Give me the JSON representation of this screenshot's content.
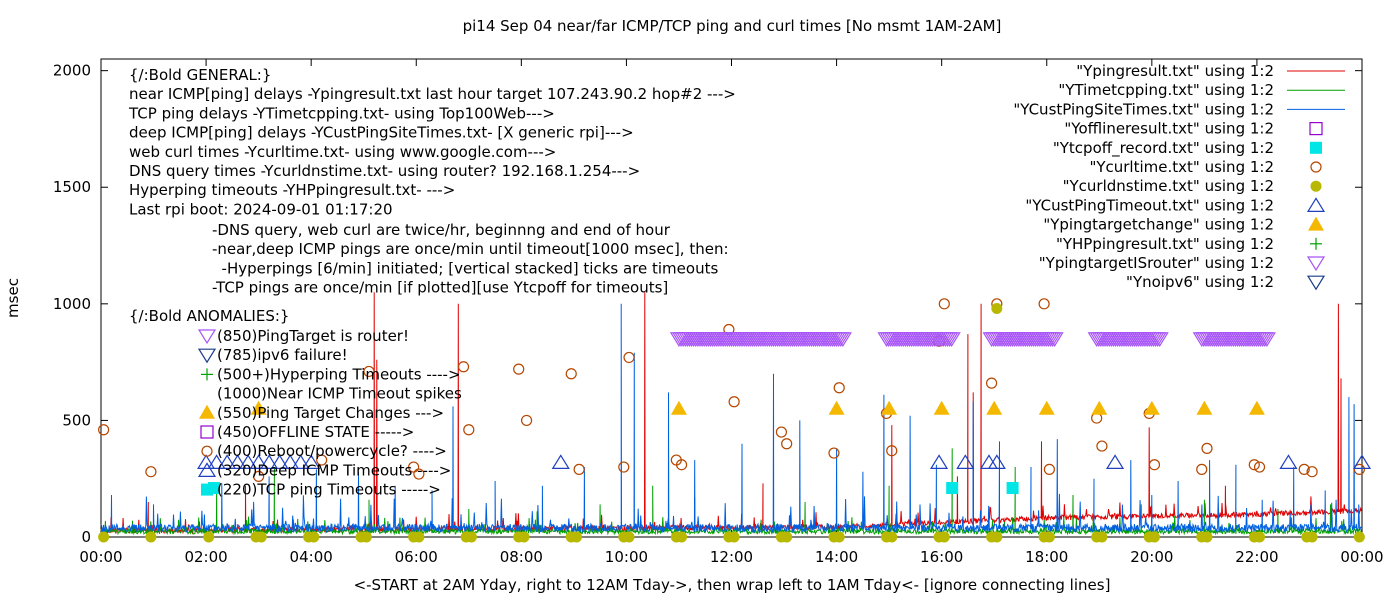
{
  "chart_data": {
    "type": "line",
    "title": "pi14 Sep 04  near/far ICMP/TCP ping and curl times [No msmt 1AM-2AM]",
    "xlabel": "<-START at 2AM Yday, right to 12AM Tday->, then wrap left to 1AM Tday<- [ignore connecting lines]",
    "ylabel": "msec",
    "xlim": [
      0,
      24
    ],
    "ylim": [
      0,
      2050
    ],
    "x_ticks": [
      {
        "value": 0,
        "label": "00:00"
      },
      {
        "value": 2,
        "label": "02:00"
      },
      {
        "value": 4,
        "label": "04:00"
      },
      {
        "value": 6,
        "label": "06:00"
      },
      {
        "value": 8,
        "label": "08:00"
      },
      {
        "value": 10,
        "label": "10:00"
      },
      {
        "value": 12,
        "label": "12:00"
      },
      {
        "value": 14,
        "label": "14:00"
      },
      {
        "value": 16,
        "label": "16:00"
      },
      {
        "value": 18,
        "label": "18:00"
      },
      {
        "value": 20,
        "label": "20:00"
      },
      {
        "value": 22,
        "label": "22:00"
      },
      {
        "value": 24,
        "label": "00:00"
      }
    ],
    "y_ticks": [
      {
        "value": 0,
        "label": "0"
      },
      {
        "value": 500,
        "label": "500"
      },
      {
        "value": 1000,
        "label": "1000"
      },
      {
        "value": 1500,
        "label": "1500"
      },
      {
        "value": 2000,
        "label": "2000"
      }
    ],
    "grid": false,
    "legend_position": "top-right",
    "annotations_general": [
      "{/:Bold GENERAL:}",
      "near ICMP[ping] delays -Ypingresult.txt last hour target 107.243.90.2 hop#2 --->",
      "TCP ping delays -YTimetcpping.txt- using Top100Web--->",
      "deep ICMP[ping] delays -YCustPingSiteTimes.txt- [X generic rpi]--->",
      "web curl times -Ycurltime.txt- using www.google.com--->",
      "DNS query times -Ycurldnstime.txt- using router? 192.168.1.254--->",
      "Hyperping timeouts -YHPpingresult.txt- --->",
      "Last rpi boot: 2024-09-01 01:17:20"
    ],
    "annotations_notes": [
      "-DNS query, web curl are twice/hr, beginnng and end of hour",
      "-near,deep ICMP pings are once/min until timeout[1000 msec], then:",
      "  -Hyperpings [6/min] initiated; [vertical stacked] ticks are timeouts",
      "-TCP pings are once/min [if plotted][use Ytcpoff for timeouts]"
    ],
    "anomalies_title": "{/:Bold ANOMALIES:}",
    "anomalies": [
      "(850)PingTarget is router!",
      "(785)ipv6 failure!",
      "(500+)Hyperping Timeouts ---->",
      "(1000)Near ICMP Timeout spikes",
      "(550)Ping Target Changes --->",
      "(450)OFFLINE STATE ----->",
      "(400)Reboot/powercycle? ---->",
      "(320)Deep ICMP Timeouts ---->",
      "(220)TCP ping Timeouts ----->"
    ],
    "series": [
      {
        "name": "\"Ypingresult.txt\" using 1:2",
        "style": "line",
        "color": "#e00000",
        "baseline": [
          [
            0,
            25
          ],
          [
            14,
            40
          ],
          [
            16,
            60
          ],
          [
            18,
            80
          ],
          [
            22,
            95
          ],
          [
            23.9,
            110
          ]
        ],
        "spikes": [
          [
            0.9,
            150
          ],
          [
            2.75,
            220
          ],
          [
            5.2,
            1050
          ],
          [
            5.25,
            760
          ],
          [
            6.8,
            1000
          ],
          [
            10.35,
            1050
          ],
          [
            12.6,
            230
          ],
          [
            15.05,
            480
          ],
          [
            16.3,
            260
          ],
          [
            16.5,
            870
          ],
          [
            16.6,
            620
          ],
          [
            16.75,
            1000
          ],
          [
            17.9,
            410
          ],
          [
            19.95,
            470
          ],
          [
            21.4,
            220
          ],
          [
            23.55,
            1000
          ],
          [
            23.6,
            680
          ]
        ]
      },
      {
        "name": "\"YTimetcpping.txt\" using 1:2",
        "style": "line",
        "color": "#00a000",
        "baseline": [
          [
            0,
            22
          ],
          [
            24,
            22
          ]
        ],
        "spikes": [
          [
            0.6,
            70
          ],
          [
            2.2,
            200
          ],
          [
            3.3,
            300
          ],
          [
            5.1,
            160
          ],
          [
            7.0,
            120
          ],
          [
            8.3,
            110
          ],
          [
            9.5,
            140
          ],
          [
            10.5,
            220
          ],
          [
            11.3,
            170
          ],
          [
            13.4,
            150
          ],
          [
            15.0,
            220
          ],
          [
            16.2,
            380
          ],
          [
            17.4,
            300
          ],
          [
            18.5,
            180
          ],
          [
            19.8,
            140
          ],
          [
            21.0,
            160
          ],
          [
            22.4,
            120
          ],
          [
            23.4,
            140
          ]
        ]
      },
      {
        "name": "\"YCustPingSiteTimes.txt\" using 1:2",
        "style": "line",
        "color": "#0060e0",
        "baseline": [
          [
            0,
            35
          ],
          [
            24,
            35
          ]
        ],
        "spikes": [
          [
            0.2,
            180
          ],
          [
            1.0,
            140
          ],
          [
            2.3,
            230
          ],
          [
            3.2,
            260
          ],
          [
            4.1,
            290
          ],
          [
            4.9,
            280
          ],
          [
            5.6,
            220
          ],
          [
            6.3,
            200
          ],
          [
            6.7,
            560
          ],
          [
            7.5,
            240
          ],
          [
            8.4,
            220
          ],
          [
            9.2,
            300
          ],
          [
            9.9,
            1000
          ],
          [
            10.15,
            790
          ],
          [
            10.8,
            620
          ],
          [
            11.3,
            330
          ],
          [
            12.2,
            400
          ],
          [
            12.8,
            700
          ],
          [
            13.3,
            500
          ],
          [
            14.0,
            380
          ],
          [
            14.5,
            280
          ],
          [
            14.9,
            610
          ],
          [
            15.4,
            520
          ],
          [
            15.9,
            310
          ],
          [
            16.6,
            580
          ],
          [
            17.1,
            410
          ],
          [
            17.7,
            300
          ],
          [
            18.2,
            420
          ],
          [
            18.9,
            250
          ],
          [
            19.6,
            330
          ],
          [
            20.0,
            180
          ],
          [
            20.5,
            240
          ],
          [
            21.1,
            330
          ],
          [
            21.6,
            310
          ],
          [
            22.1,
            160
          ],
          [
            22.7,
            300
          ],
          [
            23.3,
            200
          ],
          [
            23.75,
            600
          ],
          [
            23.85,
            570
          ]
        ]
      },
      {
        "name": "\"Yofflineresult.txt\" using 1:2",
        "style": "open-square",
        "color": "#9400d3",
        "points": []
      },
      {
        "name": "\"Ytcpoff_record.txt\" using 1:2",
        "style": "filled-square",
        "color": "#00e5e5",
        "points": [
          [
            2.15,
            210
          ],
          [
            16.2,
            210
          ],
          [
            17.35,
            210
          ]
        ]
      },
      {
        "name": "\"Ycurltime.txt\" using 1:2",
        "style": "open-circle",
        "color": "#b54700",
        "points": [
          [
            0.05,
            460
          ],
          [
            0.95,
            280
          ],
          [
            3.0,
            260
          ],
          [
            4.2,
            330
          ],
          [
            5.1,
            710
          ],
          [
            5.95,
            300
          ],
          [
            6.05,
            270
          ],
          [
            6.9,
            730
          ],
          [
            7.0,
            460
          ],
          [
            7.95,
            720
          ],
          [
            8.1,
            500
          ],
          [
            8.95,
            700
          ],
          [
            9.1,
            290
          ],
          [
            9.95,
            300
          ],
          [
            10.05,
            770
          ],
          [
            10.95,
            330
          ],
          [
            11.05,
            310
          ],
          [
            11.95,
            890
          ],
          [
            12.05,
            580
          ],
          [
            12.95,
            450
          ],
          [
            13.05,
            400
          ],
          [
            13.95,
            360
          ],
          [
            14.05,
            640
          ],
          [
            14.95,
            530
          ],
          [
            15.05,
            370
          ],
          [
            15.95,
            840
          ],
          [
            16.05,
            1000
          ],
          [
            16.95,
            660
          ],
          [
            17.05,
            1000
          ],
          [
            17.95,
            1000
          ],
          [
            18.05,
            290
          ],
          [
            18.95,
            510
          ],
          [
            19.05,
            390
          ],
          [
            19.95,
            530
          ],
          [
            20.05,
            310
          ],
          [
            20.95,
            290
          ],
          [
            21.05,
            380
          ],
          [
            21.95,
            310
          ],
          [
            22.05,
            300
          ],
          [
            22.9,
            290
          ],
          [
            23.05,
            280
          ],
          [
            23.95,
            290
          ]
        ]
      },
      {
        "name": "\"Ycurldnstime.txt\" using 1:2",
        "style": "filled-circle",
        "color": "#b8b800",
        "points": [
          [
            0.05,
            0
          ],
          [
            0.95,
            0
          ],
          [
            2.05,
            0
          ],
          [
            2.95,
            0
          ],
          [
            3.05,
            0
          ],
          [
            3.95,
            0
          ],
          [
            4.05,
            0
          ],
          [
            4.95,
            0
          ],
          [
            5.05,
            0
          ],
          [
            5.95,
            0
          ],
          [
            6.05,
            0
          ],
          [
            6.95,
            0
          ],
          [
            7.05,
            0
          ],
          [
            7.95,
            0
          ],
          [
            8.05,
            0
          ],
          [
            8.95,
            0
          ],
          [
            9.05,
            0
          ],
          [
            9.95,
            0
          ],
          [
            10.05,
            0
          ],
          [
            10.95,
            0
          ],
          [
            11.05,
            0
          ],
          [
            11.95,
            0
          ],
          [
            12.05,
            0
          ],
          [
            12.95,
            0
          ],
          [
            13.05,
            0
          ],
          [
            13.95,
            0
          ],
          [
            14.05,
            0
          ],
          [
            14.95,
            0
          ],
          [
            15.05,
            0
          ],
          [
            15.95,
            0
          ],
          [
            16.05,
            0
          ],
          [
            16.95,
            0
          ],
          [
            17.05,
            0
          ],
          [
            17.05,
            980
          ],
          [
            17.95,
            0
          ],
          [
            18.05,
            0
          ],
          [
            18.95,
            0
          ],
          [
            19.05,
            0
          ],
          [
            19.95,
            0
          ],
          [
            20.05,
            0
          ],
          [
            20.95,
            0
          ],
          [
            21.05,
            0
          ],
          [
            21.95,
            0
          ],
          [
            22.05,
            0
          ],
          [
            22.95,
            0
          ],
          [
            23.05,
            0
          ],
          [
            23.95,
            0
          ]
        ]
      },
      {
        "name": "\"YCustPingTimeout.txt\" using 1:2",
        "style": "open-triangle",
        "color": "#2040c0",
        "points": [
          [
            2.0,
            320
          ],
          [
            2.2,
            320
          ],
          [
            2.4,
            320
          ],
          [
            2.6,
            320
          ],
          [
            2.8,
            320
          ],
          [
            3.0,
            320
          ],
          [
            3.2,
            320
          ],
          [
            3.4,
            320
          ],
          [
            3.6,
            320
          ],
          [
            3.8,
            320
          ],
          [
            4.0,
            320
          ],
          [
            8.75,
            320
          ],
          [
            15.95,
            320
          ],
          [
            16.45,
            320
          ],
          [
            16.9,
            320
          ],
          [
            17.05,
            320
          ],
          [
            19.3,
            320
          ],
          [
            22.6,
            320
          ],
          [
            24.0,
            320
          ]
        ]
      },
      {
        "name": "\"Ypingtargetchange\" using 1:2",
        "style": "filled-triangle",
        "color": "#f5b800",
        "points": [
          [
            3.0,
            550
          ],
          [
            11.0,
            550
          ],
          [
            14.0,
            550
          ],
          [
            15.0,
            550
          ],
          [
            16.0,
            550
          ],
          [
            17.0,
            550
          ],
          [
            18.0,
            550
          ],
          [
            19.0,
            550
          ],
          [
            20.0,
            550
          ],
          [
            21.0,
            550
          ],
          [
            22.0,
            550
          ]
        ]
      },
      {
        "name": "\"YHPpingresult.txt\" using 1:2",
        "style": "plus",
        "color": "#00a000",
        "points": []
      },
      {
        "name": "\"YpingtargetISrouter\" using 1:2",
        "style": "open-triangle-down",
        "color": "#a855f7",
        "bands": [
          [
            11.0,
            14.15
          ],
          [
            14.95,
            16.2
          ],
          [
            16.95,
            18.15
          ],
          [
            18.95,
            20.15
          ],
          [
            20.95,
            22.2
          ]
        ],
        "level": 850
      },
      {
        "name": "\"Ynoipv6\" using 1:2",
        "style": "open-triangle-down",
        "color": "#1a3a8a",
        "points": []
      }
    ]
  }
}
